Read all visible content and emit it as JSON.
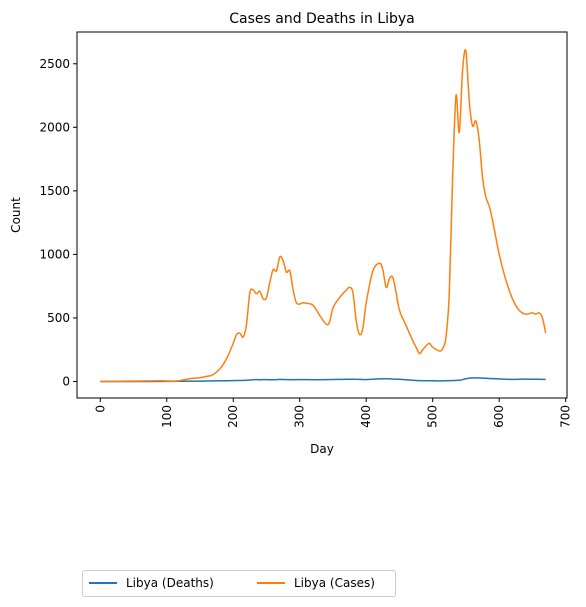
{
  "chart_data": {
    "type": "line",
    "title": "Cases and Deaths in Libya",
    "xlabel": "Day",
    "ylabel": "Count",
    "xlim": [
      -35,
      702
    ],
    "ylim": [
      -130,
      2750
    ],
    "xticks": [
      0,
      100,
      200,
      300,
      400,
      500,
      600,
      700
    ],
    "yticks": [
      0,
      500,
      1000,
      1500,
      2000,
      2500
    ],
    "grid": false,
    "legend_position": "bottom-left, below plot",
    "series": [
      {
        "name": "Libya (Deaths)",
        "color": "#1f77b4",
        "x": [
          0,
          50,
          100,
          150,
          180,
          200,
          220,
          230,
          240,
          250,
          260,
          270,
          280,
          290,
          300,
          320,
          340,
          360,
          380,
          390,
          400,
          410,
          420,
          430,
          440,
          450,
          460,
          470,
          480,
          500,
          520,
          540,
          550,
          560,
          570,
          580,
          590,
          600,
          610,
          620,
          630,
          640,
          650,
          660,
          670
        ],
        "y": [
          0,
          0,
          1,
          3,
          5,
          7,
          10,
          14,
          14,
          15,
          13,
          16,
          15,
          14,
          15,
          14,
          15,
          16,
          18,
          16,
          15,
          18,
          20,
          22,
          19,
          17,
          14,
          10,
          7,
          5,
          6,
          10,
          22,
          28,
          27,
          25,
          23,
          20,
          17,
          16,
          18,
          19,
          18,
          17,
          16
        ]
      },
      {
        "name": "Libya (Cases)",
        "color": "#ff7f0e",
        "x": [
          0,
          50,
          90,
          110,
          120,
          130,
          140,
          150,
          160,
          170,
          180,
          190,
          200,
          205,
          210,
          215,
          220,
          225,
          230,
          235,
          240,
          245,
          250,
          255,
          260,
          265,
          270,
          275,
          280,
          285,
          290,
          295,
          300,
          305,
          310,
          320,
          330,
          340,
          345,
          350,
          360,
          370,
          375,
          380,
          385,
          390,
          395,
          400,
          410,
          420,
          425,
          430,
          435,
          440,
          445,
          450,
          460,
          470,
          475,
          480,
          485,
          490,
          495,
          500,
          510,
          515,
          520,
          525,
          530,
          535,
          540,
          545,
          550,
          555,
          560,
          565,
          570,
          575,
          580,
          585,
          590,
          600,
          610,
          620,
          630,
          640,
          650,
          655,
          660,
          665,
          670
        ],
        "y": [
          0,
          3,
          5,
          3,
          8,
          18,
          25,
          30,
          40,
          55,
          100,
          180,
          300,
          370,
          380,
          350,
          450,
          700,
          720,
          690,
          710,
          650,
          660,
          780,
          880,
          870,
          980,
          950,
          860,
          870,
          720,
          620,
          610,
          620,
          615,
          600,
          520,
          450,
          470,
          580,
          660,
          720,
          740,
          700,
          480,
          370,
          420,
          620,
          870,
          930,
          880,
          740,
          810,
          820,
          700,
          560,
          440,
          320,
          270,
          220,
          250,
          280,
          300,
          270,
          240,
          260,
          350,
          700,
          1600,
          2250,
          1960,
          2450,
          2600,
          2200,
          2010,
          2050,
          1900,
          1600,
          1450,
          1380,
          1270,
          1000,
          800,
          650,
          560,
          530,
          540,
          530,
          540,
          500,
          380
        ]
      }
    ]
  }
}
